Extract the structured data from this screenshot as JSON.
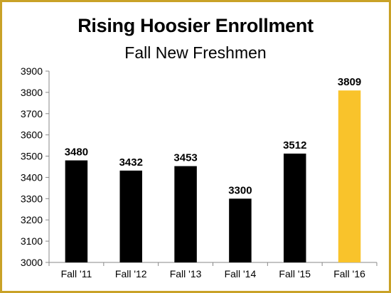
{
  "chart_data": {
    "type": "bar",
    "title": "Rising Hoosier Enrollment",
    "subtitle": "Fall New Freshmen",
    "xlabel": "",
    "ylabel": "",
    "categories": [
      "Fall '11",
      "Fall '12",
      "Fall '13",
      "Fall '14",
      "Fall '15",
      "Fall '16"
    ],
    "values": [
      3480,
      3432,
      3453,
      3300,
      3512,
      3809
    ],
    "value_labels": [
      "3480",
      "3432",
      "3453",
      "3300",
      "3512",
      "3809"
    ],
    "ylim": [
      3000,
      3900
    ],
    "yticks": [
      "3000",
      "3100",
      "3200",
      "3300",
      "3400",
      "3500",
      "3600",
      "3700",
      "3800",
      "3900"
    ],
    "grid": false,
    "legend": "none",
    "bar_colors": [
      "#000000",
      "#000000",
      "#000000",
      "#000000",
      "#000000",
      "#f9c32b"
    ],
    "border_color": "#c9a227"
  }
}
